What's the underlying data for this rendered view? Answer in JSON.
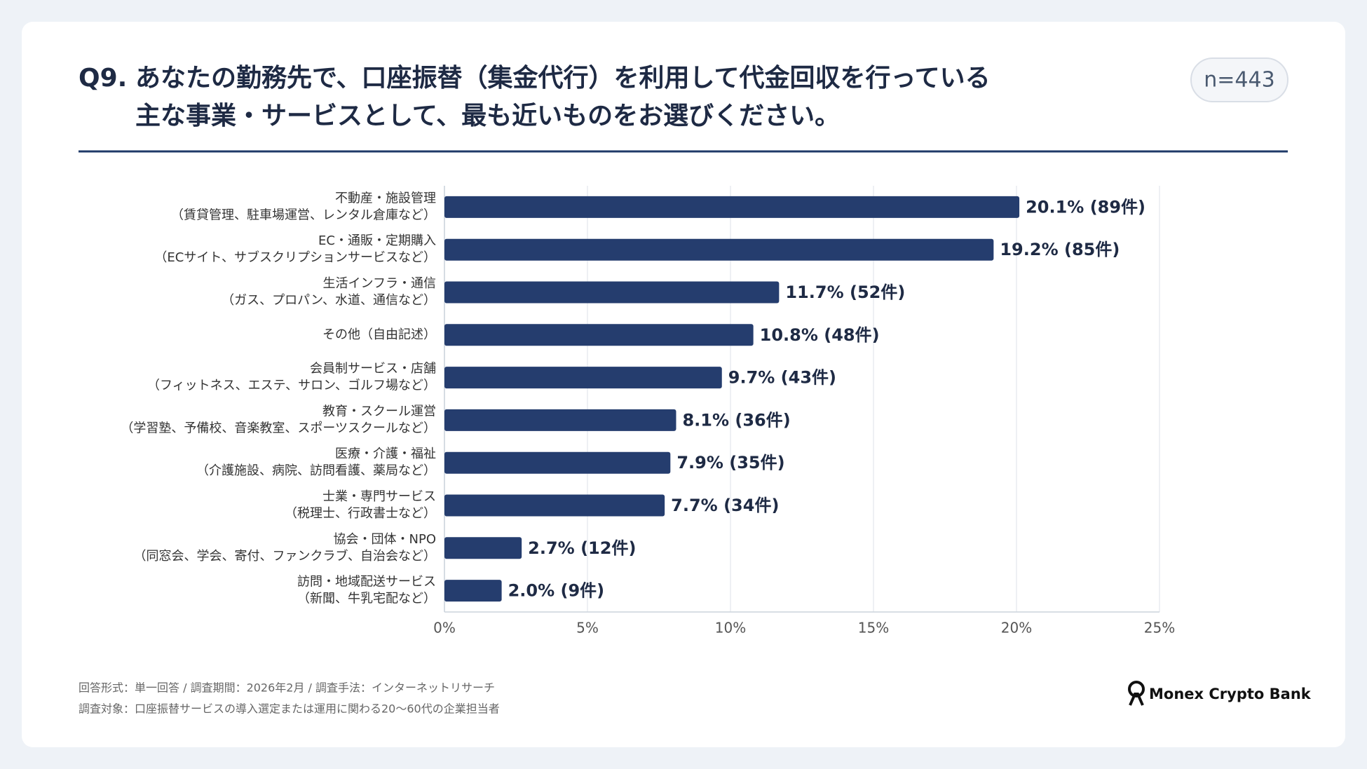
{
  "chart_data": {
    "type": "bar",
    "orientation": "horizontal",
    "question_number": "Q9.",
    "title": [
      "あなたの勤務先で、口座振替（集金代行）を利用して代金回収を行っている",
      "主な事業・サービスとして、最も近いものをお選びください。"
    ],
    "sample_size": "n=443",
    "categories": [
      [
        "不動産・施設管理",
        "（賃貸管理、駐車場運営、レンタル倉庫など）"
      ],
      [
        "EC・通販・定期購入",
        "（ECサイト、サブスクリプションサービスなど）"
      ],
      [
        "生活インフラ・通信",
        "（ガス、プロパン、水道、通信など）"
      ],
      [
        "その他（自由記述）"
      ],
      [
        "会員制サービス・店舗",
        "（フィットネス、エステ、サロン、ゴルフ場など）"
      ],
      [
        "教育・スクール運営",
        "（学習塾、予備校、音楽教室、スポーツスクールなど）"
      ],
      [
        "医療・介護・福祉",
        "（介護施設、病院、訪問看護、薬局など）"
      ],
      [
        "士業・専門サービス",
        "（税理士、行政書士など）"
      ],
      [
        "協会・団体・NPO",
        "（同窓会、学会、寄付、ファンクラブ、自治会など）"
      ],
      [
        "訪問・地域配送サービス",
        "（新聞、牛乳宅配など）"
      ]
    ],
    "values": [
      20.1,
      19.2,
      11.7,
      10.8,
      9.7,
      8.1,
      7.9,
      7.7,
      2.7,
      2.0
    ],
    "value_labels": [
      "20.1% (89件)",
      "19.2% (85件)",
      "11.7% (52件)",
      "10.8% (48件)",
      "9.7% (43件)",
      "8.1% (36件)",
      "7.9% (35件)",
      "7.7% (34件)",
      "2.7% (12件)",
      "2.0% (9件)"
    ],
    "color": "#253d6e",
    "xlim": [
      0,
      25
    ],
    "xticks": [
      {
        "value": 0,
        "label": "0%"
      },
      {
        "value": 5,
        "label": "5%"
      },
      {
        "value": 10,
        "label": "10%"
      },
      {
        "value": 15,
        "label": "15%"
      },
      {
        "value": 20,
        "label": "20%"
      },
      {
        "value": 25,
        "label": "25%"
      }
    ],
    "grid": true,
    "footnotes": [
      "回答形式：単一回答 / 調査期間：2026年2月 / 調査手法：インターネットリサーチ",
      "調査対象：口座振替サービスの導入選定または運用に関わる20〜60代の企業担当者"
    ],
    "brand": "Monex Crypto Bank"
  }
}
